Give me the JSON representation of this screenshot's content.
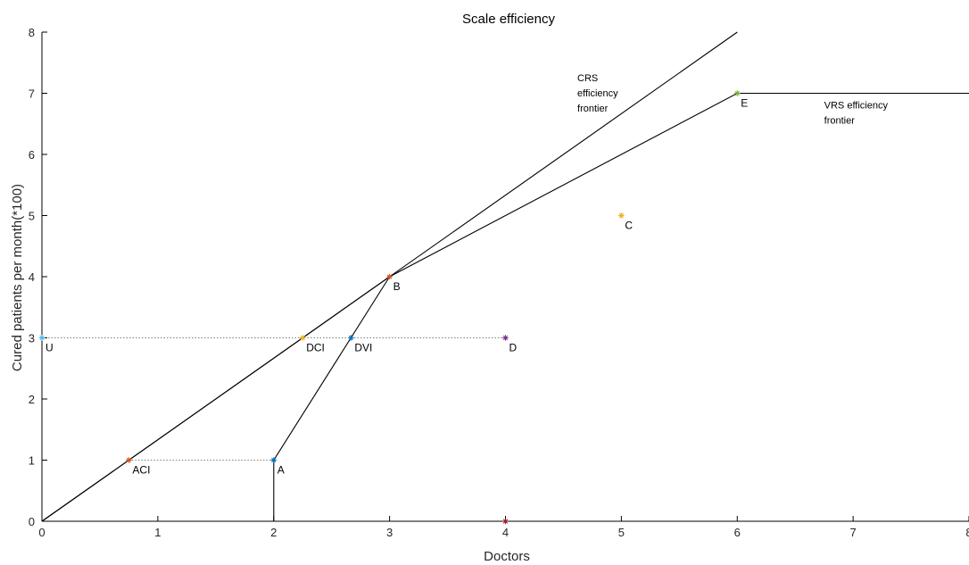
{
  "chart_data": {
    "type": "line",
    "title": "Scale efficiency",
    "xlabel": "Doctors",
    "ylabel": "Cured patients per month(*100)",
    "xlim": [
      0,
      8
    ],
    "ylim": [
      0,
      8
    ],
    "xticks": [
      0,
      1,
      2,
      3,
      4,
      5,
      6,
      7,
      8
    ],
    "yticks": [
      0,
      1,
      2,
      3,
      4,
      5,
      6,
      7,
      8
    ],
    "grid": false,
    "lines": [
      {
        "id": "crs-frontier",
        "style": "solid",
        "x": [
          0,
          6
        ],
        "y": [
          0,
          8
        ]
      },
      {
        "id": "vrs-frontier",
        "style": "solid",
        "x": [
          0,
          3,
          6,
          8
        ],
        "y": [
          0,
          4,
          7,
          7
        ]
      },
      {
        "id": "vrs-lower-segment",
        "style": "solid",
        "x": [
          2,
          2,
          3
        ],
        "y": [
          0,
          1,
          4
        ]
      },
      {
        "id": "guide-y3",
        "style": "dotted",
        "x": [
          0,
          4
        ],
        "y": [
          3,
          3
        ]
      },
      {
        "id": "guide-y1",
        "style": "dotted",
        "x": [
          0.75,
          2
        ],
        "y": [
          1,
          1
        ]
      }
    ],
    "points": [
      {
        "label": "A",
        "x": 2,
        "y": 1,
        "color": "#0072bd"
      },
      {
        "label": "B",
        "x": 3,
        "y": 4,
        "color": "#d95319"
      },
      {
        "label": "C",
        "x": 5,
        "y": 5,
        "color": "#edb120"
      },
      {
        "label": "D",
        "x": 4,
        "y": 3,
        "color": "#7e2f8e"
      },
      {
        "label": "E",
        "x": 6,
        "y": 7,
        "color": "#77ac30"
      },
      {
        "label": "U",
        "x": 0,
        "y": 3,
        "color": "#4dbeee"
      },
      {
        "label": "ACI",
        "x": 0.75,
        "y": 1,
        "color": "#d95319"
      },
      {
        "label": "DCI",
        "x": 2.25,
        "y": 3,
        "color": "#edb120"
      },
      {
        "label": "DVI",
        "x": 2.667,
        "y": 3,
        "color": "#0072bd"
      },
      {
        "label": "",
        "x": 4,
        "y": 0,
        "color": "#a2142f"
      }
    ],
    "annotations": [
      {
        "id": "crs-label",
        "lines": [
          "CRS",
          "efficiency",
          "frontier"
        ],
        "x": 4.62,
        "y": 7.2
      },
      {
        "id": "vrs-label",
        "lines": [
          "VRS efficiency",
          "frontier"
        ],
        "x": 6.75,
        "y": 6.75
      }
    ]
  }
}
